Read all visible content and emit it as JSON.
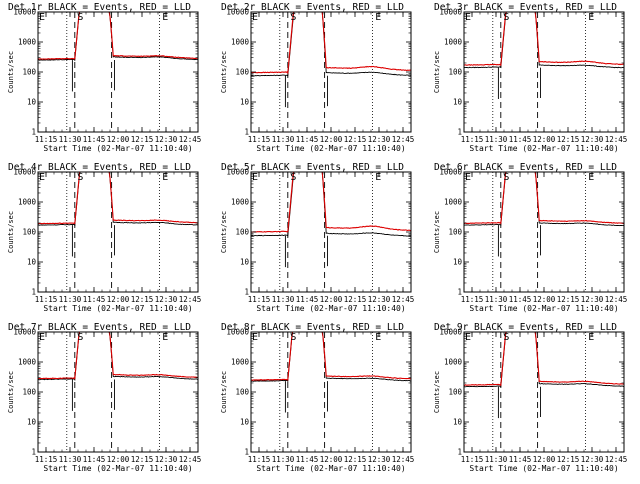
{
  "chart_data": [
    {
      "type": "line",
      "title": "Det 1r BLACK = Events, RED = LLD",
      "xlabel": "Start Time (02-Mar-07 11:10:40)",
      "ylabel": "Counts/sec",
      "x_ticks": [
        "11:15",
        "11:30",
        "11:45",
        "12:00",
        "12:15",
        "12:30",
        "12:45"
      ],
      "y_ticks": [
        "1",
        "10",
        "100",
        "1000",
        "10000"
      ],
      "ylim": [
        1,
        10000
      ],
      "xlim": [
        "11:10",
        "12:50"
      ],
      "y_scale": "log",
      "markers": [
        "E",
        "S",
        "E"
      ],
      "series": [
        {
          "color": "#000000",
          "base_before": 250,
          "level_after": 320,
          "bump": 1.1
        },
        {
          "color": "#dd0000",
          "base_before": 270,
          "level_after": 350,
          "bump": 1.1
        }
      ]
    },
    {
      "type": "line",
      "title": "Det 2r BLACK = Events, RED = LLD",
      "xlabel": "Start Time (02-Mar-07 11:10:40)",
      "ylabel": "Counts/sec",
      "x_ticks": [
        "11:15",
        "11:30",
        "11:45",
        "12:00",
        "12:15",
        "12:30",
        "12:45"
      ],
      "y_ticks": [
        "1",
        "10",
        "100",
        "1000",
        "10000"
      ],
      "ylim": [
        1,
        10000
      ],
      "xlim": [
        "11:10",
        "12:50"
      ],
      "y_scale": "log",
      "markers": [
        "E",
        "S",
        "E"
      ],
      "series": [
        {
          "color": "#000000",
          "base_before": 75,
          "level_after": 95,
          "bump": 1.15
        },
        {
          "color": "#dd0000",
          "base_before": 95,
          "level_after": 140,
          "bump": 1.2
        }
      ]
    },
    {
      "type": "line",
      "title": "Det 3r BLACK = Events, RED = LLD",
      "xlabel": "Start Time (02-Mar-07 11:10:40)",
      "ylabel": "Counts/sec",
      "x_ticks": [
        "11:15",
        "11:30",
        "11:45",
        "12:00",
        "12:15",
        "12:30",
        "12:45"
      ],
      "y_ticks": [
        "1",
        "10",
        "100",
        "1000",
        "10000"
      ],
      "ylim": [
        1,
        10000
      ],
      "xlim": [
        "11:10",
        "12:50"
      ],
      "y_scale": "log",
      "markers": [
        "E",
        "S",
        "E"
      ],
      "series": [
        {
          "color": "#000000",
          "base_before": 140,
          "level_after": 170,
          "bump": 1.1
        },
        {
          "color": "#dd0000",
          "base_before": 170,
          "level_after": 220,
          "bump": 1.15
        }
      ]
    },
    {
      "type": "line",
      "title": "Det 4r BLACK = Events, RED = LLD",
      "xlabel": "Start Time (02-Mar-07 11:10:40)",
      "ylabel": "Counts/sec",
      "x_ticks": [
        "11:15",
        "11:30",
        "11:45",
        "12:00",
        "12:15",
        "12:30",
        "12:45"
      ],
      "y_ticks": [
        "1",
        "10",
        "100",
        "1000",
        "10000"
      ],
      "ylim": [
        1,
        10000
      ],
      "xlim": [
        "11:10",
        "12:50"
      ],
      "y_scale": "log",
      "markers": [
        "E",
        "S",
        "E"
      ],
      "series": [
        {
          "color": "#000000",
          "base_before": 170,
          "level_after": 210,
          "bump": 1.1
        },
        {
          "color": "#dd0000",
          "base_before": 190,
          "level_after": 250,
          "bump": 1.1
        }
      ]
    },
    {
      "type": "line",
      "title": "Det 5r BLACK = Events, RED = LLD",
      "xlabel": "Start Time (02-Mar-07 11:10:40)",
      "ylabel": "Counts/sec",
      "x_ticks": [
        "11:15",
        "11:30",
        "11:45",
        "12:00",
        "12:15",
        "12:30",
        "12:45"
      ],
      "y_ticks": [
        "1",
        "10",
        "100",
        "1000",
        "10000"
      ],
      "ylim": [
        1,
        10000
      ],
      "xlim": [
        "11:10",
        "12:50"
      ],
      "y_scale": "log",
      "markers": [
        "E",
        "S",
        "E"
      ],
      "series": [
        {
          "color": "#000000",
          "base_before": 75,
          "level_after": 90,
          "bump": 1.15
        },
        {
          "color": "#dd0000",
          "base_before": 100,
          "level_after": 140,
          "bump": 1.25
        }
      ]
    },
    {
      "type": "line",
      "title": "Det 6r BLACK = Events, RED = LLD",
      "xlabel": "Start Time (02-Mar-07 11:10:40)",
      "ylabel": "Counts/sec",
      "x_ticks": [
        "11:15",
        "11:30",
        "11:45",
        "12:00",
        "12:15",
        "12:30",
        "12:45"
      ],
      "y_ticks": [
        "1",
        "10",
        "100",
        "1000",
        "10000"
      ],
      "ylim": [
        1,
        10000
      ],
      "xlim": [
        "11:10",
        "12:50"
      ],
      "y_scale": "log",
      "markers": [
        "E",
        "S",
        "E"
      ],
      "series": [
        {
          "color": "#000000",
          "base_before": 170,
          "level_after": 200,
          "bump": 1.1
        },
        {
          "color": "#dd0000",
          "base_before": 195,
          "level_after": 240,
          "bump": 1.1
        }
      ]
    },
    {
      "type": "line",
      "title": "Det 7r BLACK = Events, RED = LLD",
      "xlabel": "Start Time (02-Mar-07 11:10:40)",
      "ylabel": "Counts/sec",
      "x_ticks": [
        "11:15",
        "11:30",
        "11:45",
        "12:00",
        "12:15",
        "12:30",
        "12:45"
      ],
      "y_ticks": [
        "1",
        "10",
        "100",
        "1000",
        "10000"
      ],
      "ylim": [
        1,
        10000
      ],
      "xlim": [
        "11:10",
        "12:50"
      ],
      "y_scale": "log",
      "markers": [
        "E",
        "S",
        "E"
      ],
      "series": [
        {
          "color": "#000000",
          "base_before": 260,
          "level_after": 330,
          "bump": 1.1
        },
        {
          "color": "#dd0000",
          "base_before": 280,
          "level_after": 380,
          "bump": 1.1
        }
      ]
    },
    {
      "type": "line",
      "title": "Det 8r BLACK = Events, RED = LLD",
      "xlabel": "Start Time (02-Mar-07 11:10:40)",
      "ylabel": "Counts/sec",
      "x_ticks": [
        "11:15",
        "11:30",
        "11:45",
        "12:00",
        "12:15",
        "12:30",
        "12:45"
      ],
      "y_ticks": [
        "1",
        "10",
        "100",
        "1000",
        "10000"
      ],
      "ylim": [
        1,
        10000
      ],
      "xlim": [
        "11:10",
        "12:50"
      ],
      "y_scale": "log",
      "markers": [
        "E",
        "S",
        "E"
      ],
      "series": [
        {
          "color": "#000000",
          "base_before": 230,
          "level_after": 290,
          "bump": 1.1
        },
        {
          "color": "#dd0000",
          "base_before": 250,
          "level_after": 340,
          "bump": 1.12
        }
      ]
    },
    {
      "type": "line",
      "title": "Det 9r BLACK = Events, RED = LLD",
      "xlabel": "Start Time (02-Mar-07 11:10:40)",
      "ylabel": "Counts/sec",
      "x_ticks": [
        "11:15",
        "11:30",
        "11:45",
        "12:00",
        "12:15",
        "12:30",
        "12:45"
      ],
      "y_ticks": [
        "1",
        "10",
        "100",
        "1000",
        "10000"
      ],
      "ylim": [
        1,
        10000
      ],
      "xlim": [
        "11:10",
        "12:50"
      ],
      "y_scale": "log",
      "markers": [
        "E",
        "S",
        "E"
      ],
      "series": [
        {
          "color": "#000000",
          "base_before": 150,
          "level_after": 190,
          "bump": 1.1
        },
        {
          "color": "#dd0000",
          "base_before": 170,
          "level_after": 225,
          "bump": 1.12
        }
      ]
    }
  ],
  "colors": {
    "events": "#000000",
    "lld": "#dd0000",
    "axis": "#000000"
  }
}
